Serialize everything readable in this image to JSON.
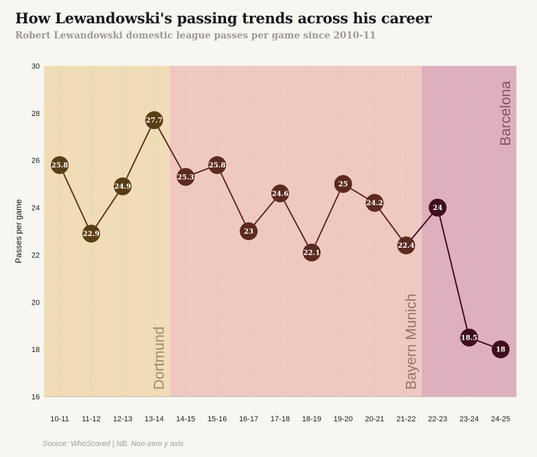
{
  "title": "How Lewandowski's passing trends across his career",
  "subtitle": "Robert Lewandowski domestic league passes per game since 2010-11",
  "source": "Source: WhoScored | NB. Non-zero y axis",
  "chart_data": {
    "type": "line",
    "categories": [
      "10-11",
      "11-12",
      "12-13",
      "13-14",
      "14-15",
      "15-16",
      "16-17",
      "17-18",
      "18-19",
      "19-20",
      "20-21",
      "21-22",
      "22-23",
      "23-24",
      "24-25"
    ],
    "values": [
      25.8,
      22.9,
      24.9,
      27.7,
      25.3,
      25.8,
      23,
      24.6,
      22.1,
      25,
      24.2,
      22.4,
      24,
      18.5,
      18
    ],
    "value_labels": [
      "25.8",
      "22.9",
      "24.9",
      "27.7",
      "25.3",
      "25.8",
      "23",
      "24.6",
      "22.1",
      "25",
      "24.2",
      "22.4",
      "24",
      "18.5",
      "18"
    ],
    "ylabel": "Passes per game",
    "xlabel": "",
    "ylim": [
      16,
      30
    ],
    "yticks": [
      16,
      18,
      20,
      22,
      24,
      26,
      28,
      30
    ],
    "grid": "vertical dotted",
    "eras": [
      {
        "name": "Dortmund",
        "start": 0,
        "end": 3,
        "fill": "#f0ddb7",
        "label_color": "#9b8a66",
        "point_color": "#5a3d14",
        "line_color": "#5a3d14"
      },
      {
        "name": "Bayern Munich",
        "start": 4,
        "end": 11,
        "fill": "#f0c8c2",
        "label_color": "#9a6f6b",
        "point_color": "#5c2a1f",
        "line_color": "#5c2a1f"
      },
      {
        "name": "Barcelona",
        "start": 12,
        "end": 14,
        "fill": "#deafbd",
        "label_color": "#8a4e62",
        "point_color": "#3f0f1e",
        "line_color": "#3f0f1e"
      }
    ]
  }
}
